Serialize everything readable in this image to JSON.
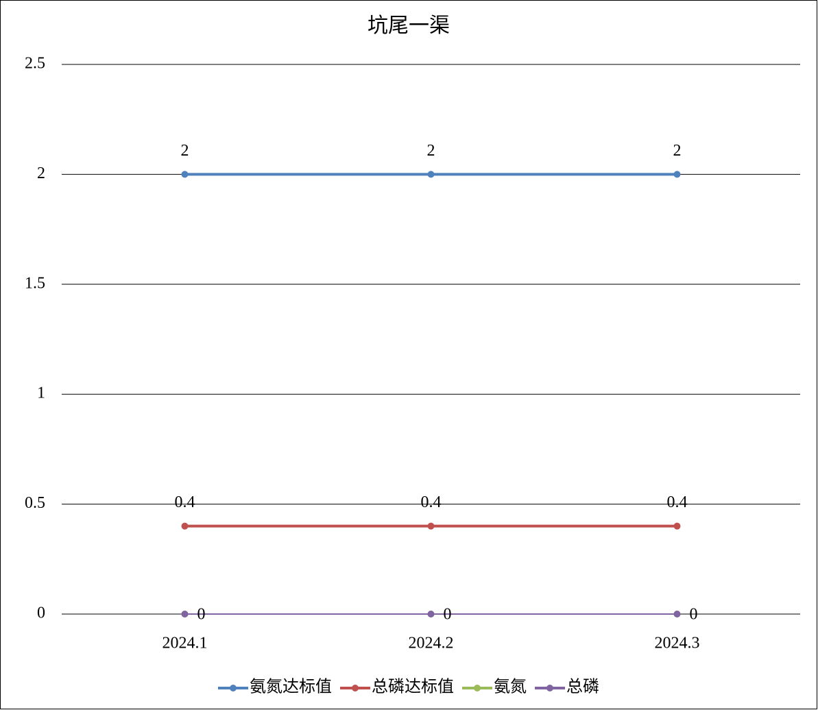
{
  "chart_data": {
    "type": "line",
    "title": "坑尾一渠",
    "categories": [
      "2024.1",
      "2024.2",
      "2024.3"
    ],
    "series": [
      {
        "name": "氨氮达标值",
        "color": "#4f81bd",
        "values": [
          2,
          2,
          2
        ],
        "data_labels": "above"
      },
      {
        "name": "总磷达标值",
        "color": "#c0504d",
        "values": [
          0.4,
          0.4,
          0.4
        ],
        "data_labels": "above"
      },
      {
        "name": "氨氮",
        "color": "#9bbb59",
        "values": [
          0,
          0,
          0
        ],
        "data_labels": "none"
      },
      {
        "name": "总磷",
        "color": "#8064a2",
        "values": [
          0,
          0,
          0
        ],
        "data_labels": "right"
      }
    ],
    "ylim": [
      0,
      2.5
    ],
    "yticks": [
      0,
      0.5,
      1,
      1.5,
      2,
      2.5
    ],
    "grid": true,
    "legend": "bottom"
  }
}
